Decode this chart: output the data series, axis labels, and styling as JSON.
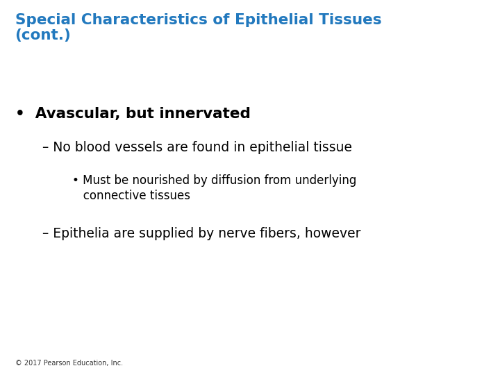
{
  "title_line1": "Special Characteristics of Epithelial Tissues",
  "title_line2": "(cont.)",
  "title_color": "#2279BE",
  "background_color": "#FFFFFF",
  "bullet1": "Avascular, but innervated",
  "sub1": "No blood vessels are found in epithelial tissue",
  "sub1_sub1_line1": "Must be nourished by diffusion from underlying",
  "sub1_sub1_line2": "connective tissues",
  "sub2": "Epithelia are supplied by nerve fibers, however",
  "footer": "© 2017 Pearson Education, Inc.",
  "title_fontsize": 15.5,
  "bullet1_fontsize": 15.5,
  "sub_fontsize": 13.5,
  "subsub_fontsize": 12,
  "footer_fontsize": 7
}
